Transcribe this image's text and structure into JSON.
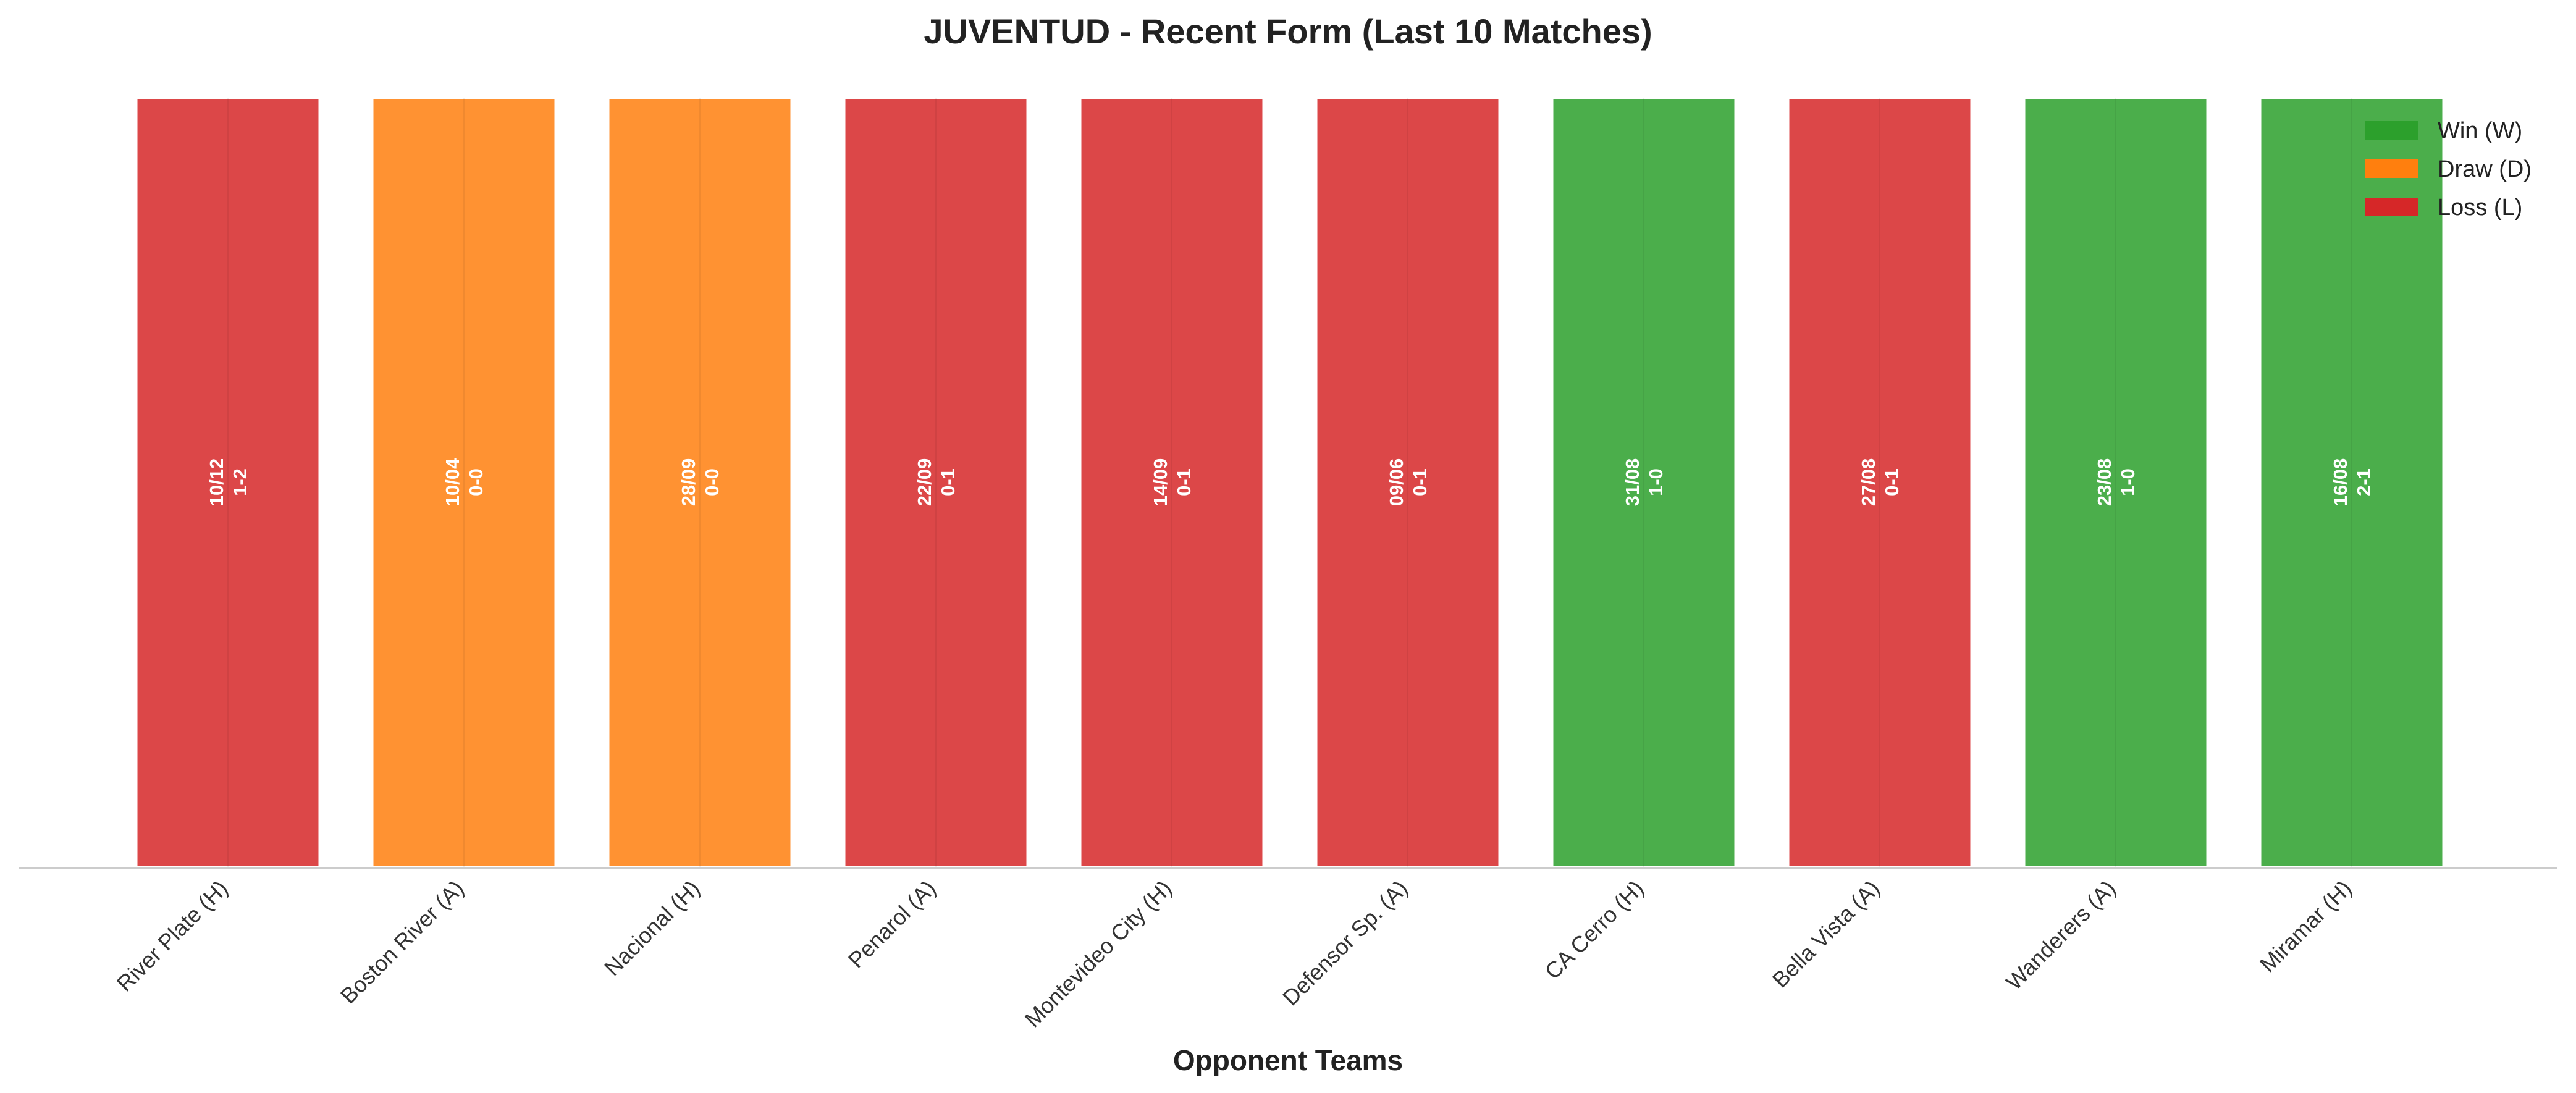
{
  "chart_data": {
    "type": "bar",
    "title": "JUVENTUD - Recent Form (Last 10 Matches)",
    "xlabel": "Opponent Teams",
    "ylabel": "",
    "ylim": [
      0,
      1
    ],
    "grid": false,
    "legend_position": "top-right",
    "categories": [
      "River Plate (H)",
      "Boston River (A)",
      "Nacional (H)",
      "Penarol (A)",
      "Montevideo City (H)",
      "Defensor Sp. (A)",
      "CA Cerro (H)",
      "Bella Vista (A)",
      "Wanderers (A)",
      "Miramar (H)"
    ],
    "values": [
      1,
      1,
      1,
      1,
      1,
      1,
      1,
      1,
      1,
      1
    ],
    "results": [
      "L",
      "D",
      "D",
      "L",
      "L",
      "L",
      "W",
      "L",
      "W",
      "W"
    ],
    "dates": [
      "10/12",
      "10/04",
      "28/09",
      "22/09",
      "14/09",
      "09/06",
      "31/08",
      "27/08",
      "23/08",
      "16/08"
    ],
    "scores": [
      "1-2",
      "0-0",
      "0-0",
      "0-1",
      "0-1",
      "0-1",
      "1-0",
      "0-1",
      "1-0",
      "2-1"
    ],
    "legend": [
      {
        "key": "W",
        "label": "Win (W)",
        "color": "#2ca02c"
      },
      {
        "key": "D",
        "label": "Draw (D)",
        "color": "#ff7f0e"
      },
      {
        "key": "L",
        "label": "Loss (L)",
        "color": "#d62728"
      }
    ]
  }
}
